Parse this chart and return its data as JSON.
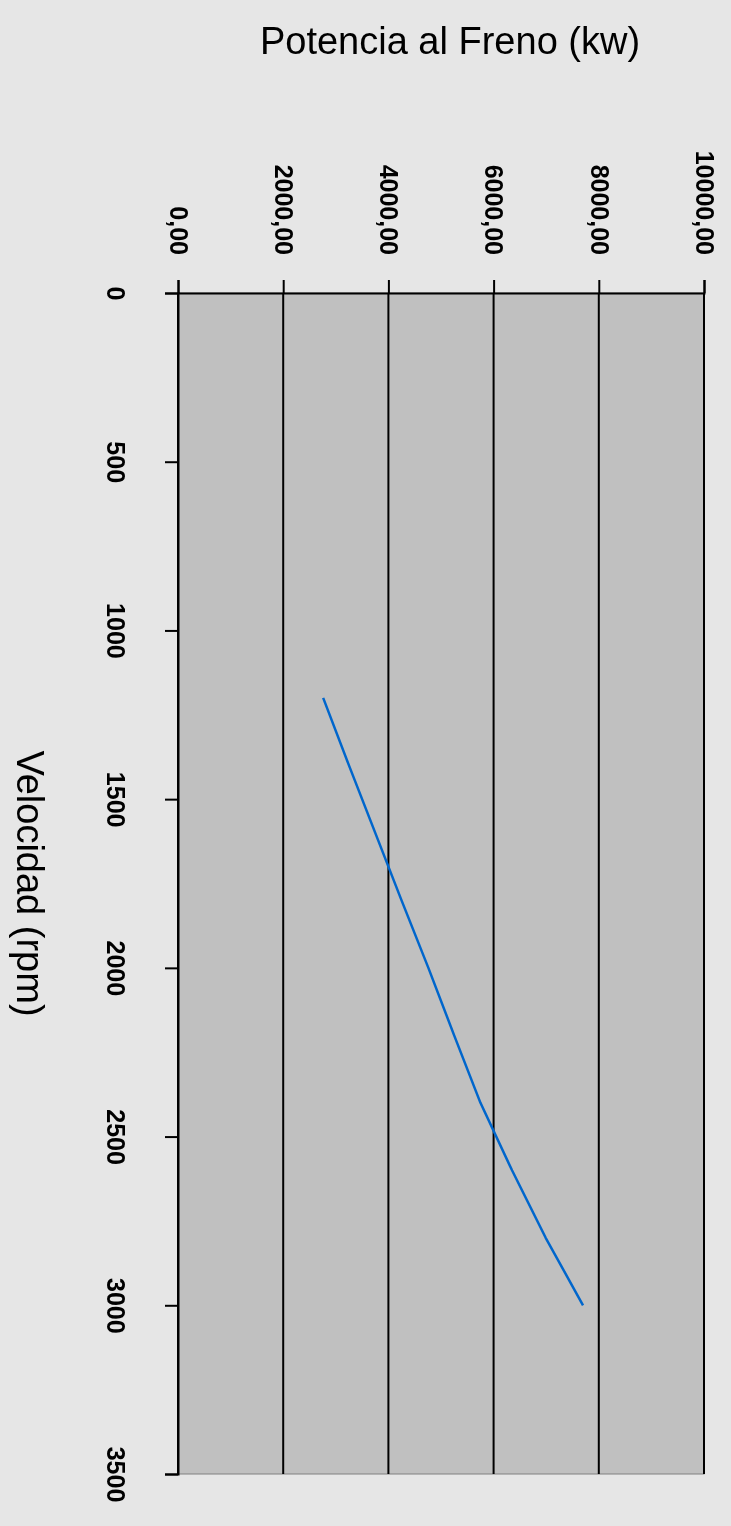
{
  "chart_data": {
    "type": "line",
    "xlabel": "Potencia al Freno (kw)",
    "ylabel": "Velocidad (rpm)",
    "x": [
      2760,
      3250,
      3750,
      4250,
      4760,
      5250,
      5750,
      6350,
      6990,
      7700
    ],
    "series": [
      {
        "color": "#0066cc",
        "values": [
          1200,
          1400,
          1600,
          1800,
          2000,
          2200,
          2400,
          2600,
          2800,
          3000
        ]
      }
    ],
    "xlim": [
      0,
      10000
    ],
    "xticks": [
      {
        "value": 0,
        "label": "0,00"
      },
      {
        "value": 2000,
        "label": "2000,00"
      },
      {
        "value": 4000,
        "label": "4000,00"
      },
      {
        "value": 6000,
        "label": "6000,00"
      },
      {
        "value": 8000,
        "label": "8000,00"
      },
      {
        "value": 10000,
        "label": "10000,00"
      }
    ],
    "ylim": [
      3500,
      0
    ],
    "yticks": [
      0,
      500,
      1000,
      1500,
      2000,
      2500,
      3000,
      3500
    ],
    "grid": "x",
    "marker": "none",
    "line_style": "solid"
  }
}
